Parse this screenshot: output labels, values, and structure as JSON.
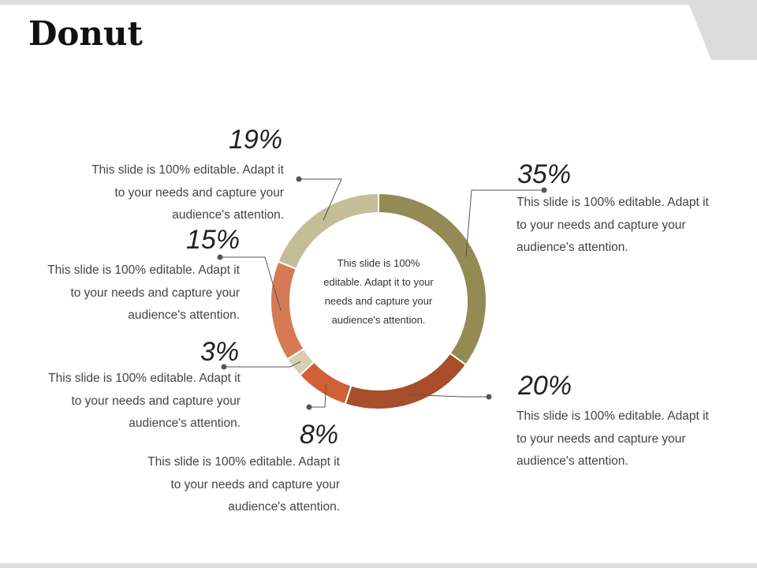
{
  "slide": {
    "title": "Donut"
  },
  "chart_data": {
    "type": "pie",
    "variant": "donut",
    "title": "Donut",
    "center_text": "This slide is 100% editable. Adapt it to your needs and capture your audience's attention.",
    "slices": [
      {
        "label": "35%",
        "value": 35,
        "color": "#948a54",
        "text": "This slide is 100% editable. Adapt it to your needs and capture your audience's attention."
      },
      {
        "label": "20%",
        "value": 20,
        "color": "#a84e2a",
        "text": "This slide is 100% editable. Adapt it to your needs and capture your audience's attention."
      },
      {
        "label": "8%",
        "value": 8,
        "color": "#d06035",
        "text": "This slide is 100% editable. Adapt it to your needs and capture your audience's attention."
      },
      {
        "label": "3%",
        "value": 3,
        "color": "#d6d0b0",
        "text": "This slide is 100% editable. Adapt it to your needs and capture your audience's attention."
      },
      {
        "label": "15%",
        "value": 15,
        "color": "#d67a55",
        "text": "This slide is 100% editable. Adapt it to your needs and capture your audience's attention."
      },
      {
        "label": "19%",
        "value": 19,
        "color": "#c4bd97",
        "text": "This slide is 100% editable. Adapt it to your needs and capture your audience's attention."
      }
    ]
  }
}
